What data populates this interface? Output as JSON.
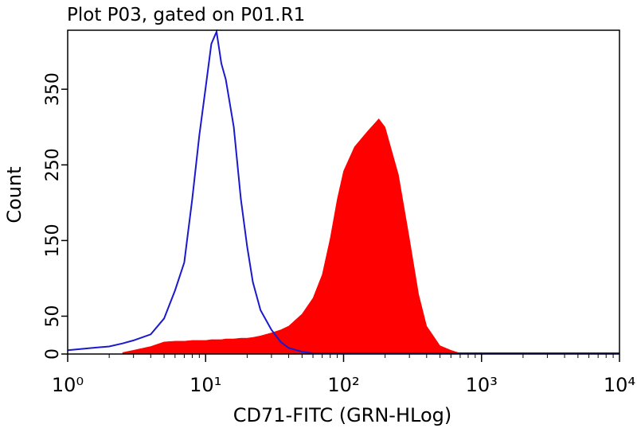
{
  "chart_data": {
    "type": "histogram-overlay",
    "title": "Plot P03, gated on P01.R1",
    "x_label": "CD71-FITC (GRN-HLog)",
    "y_label": "Count",
    "x_scale": "log",
    "x": [
      1,
      1.5,
      2,
      2.5,
      3,
      4,
      5,
      6,
      7,
      8,
      9,
      10,
      11,
      12,
      13,
      14,
      16,
      18,
      20,
      22,
      25,
      30,
      35,
      40,
      50,
      60,
      70,
      80,
      90,
      100,
      120,
      150,
      180,
      200,
      250,
      300,
      350,
      400,
      500,
      600,
      700,
      1000,
      10000
    ],
    "series": [
      {
        "style": "area",
        "color": "#ff0000",
        "values": [
          null,
          null,
          null,
          2,
          5,
          10,
          16,
          17,
          17,
          18,
          18,
          18,
          19,
          19,
          19,
          20,
          20,
          21,
          21,
          22,
          24,
          28,
          32,
          37,
          53,
          74,
          105,
          153,
          205,
          242,
          274,
          295,
          311,
          300,
          237,
          153,
          79,
          37,
          11,
          5,
          1,
          0,
          0
        ]
      },
      {
        "style": "line",
        "color": "#1a1acc",
        "values": [
          5,
          8,
          10,
          14,
          18,
          26,
          47,
          84,
          121,
          205,
          289,
          352,
          410,
          426,
          384,
          363,
          300,
          205,
          142,
          95,
          58,
          32,
          16,
          8,
          3,
          1,
          1,
          1,
          1,
          1,
          1,
          1,
          1,
          1,
          1,
          1,
          1,
          1,
          1,
          1,
          1,
          1,
          1
        ]
      }
    ],
    "xlim": [
      1,
      10000
    ],
    "xticks": [
      {
        "value": 1,
        "label": "10⁰"
      },
      {
        "value": 10,
        "label": "10¹"
      },
      {
        "value": 100,
        "label": "10²"
      },
      {
        "value": 1000,
        "label": "10³"
      },
      {
        "value": 10000,
        "label": "10⁴"
      }
    ],
    "ylim": [
      0,
      428
    ],
    "yticks": [
      0,
      50,
      150,
      250,
      350
    ]
  }
}
